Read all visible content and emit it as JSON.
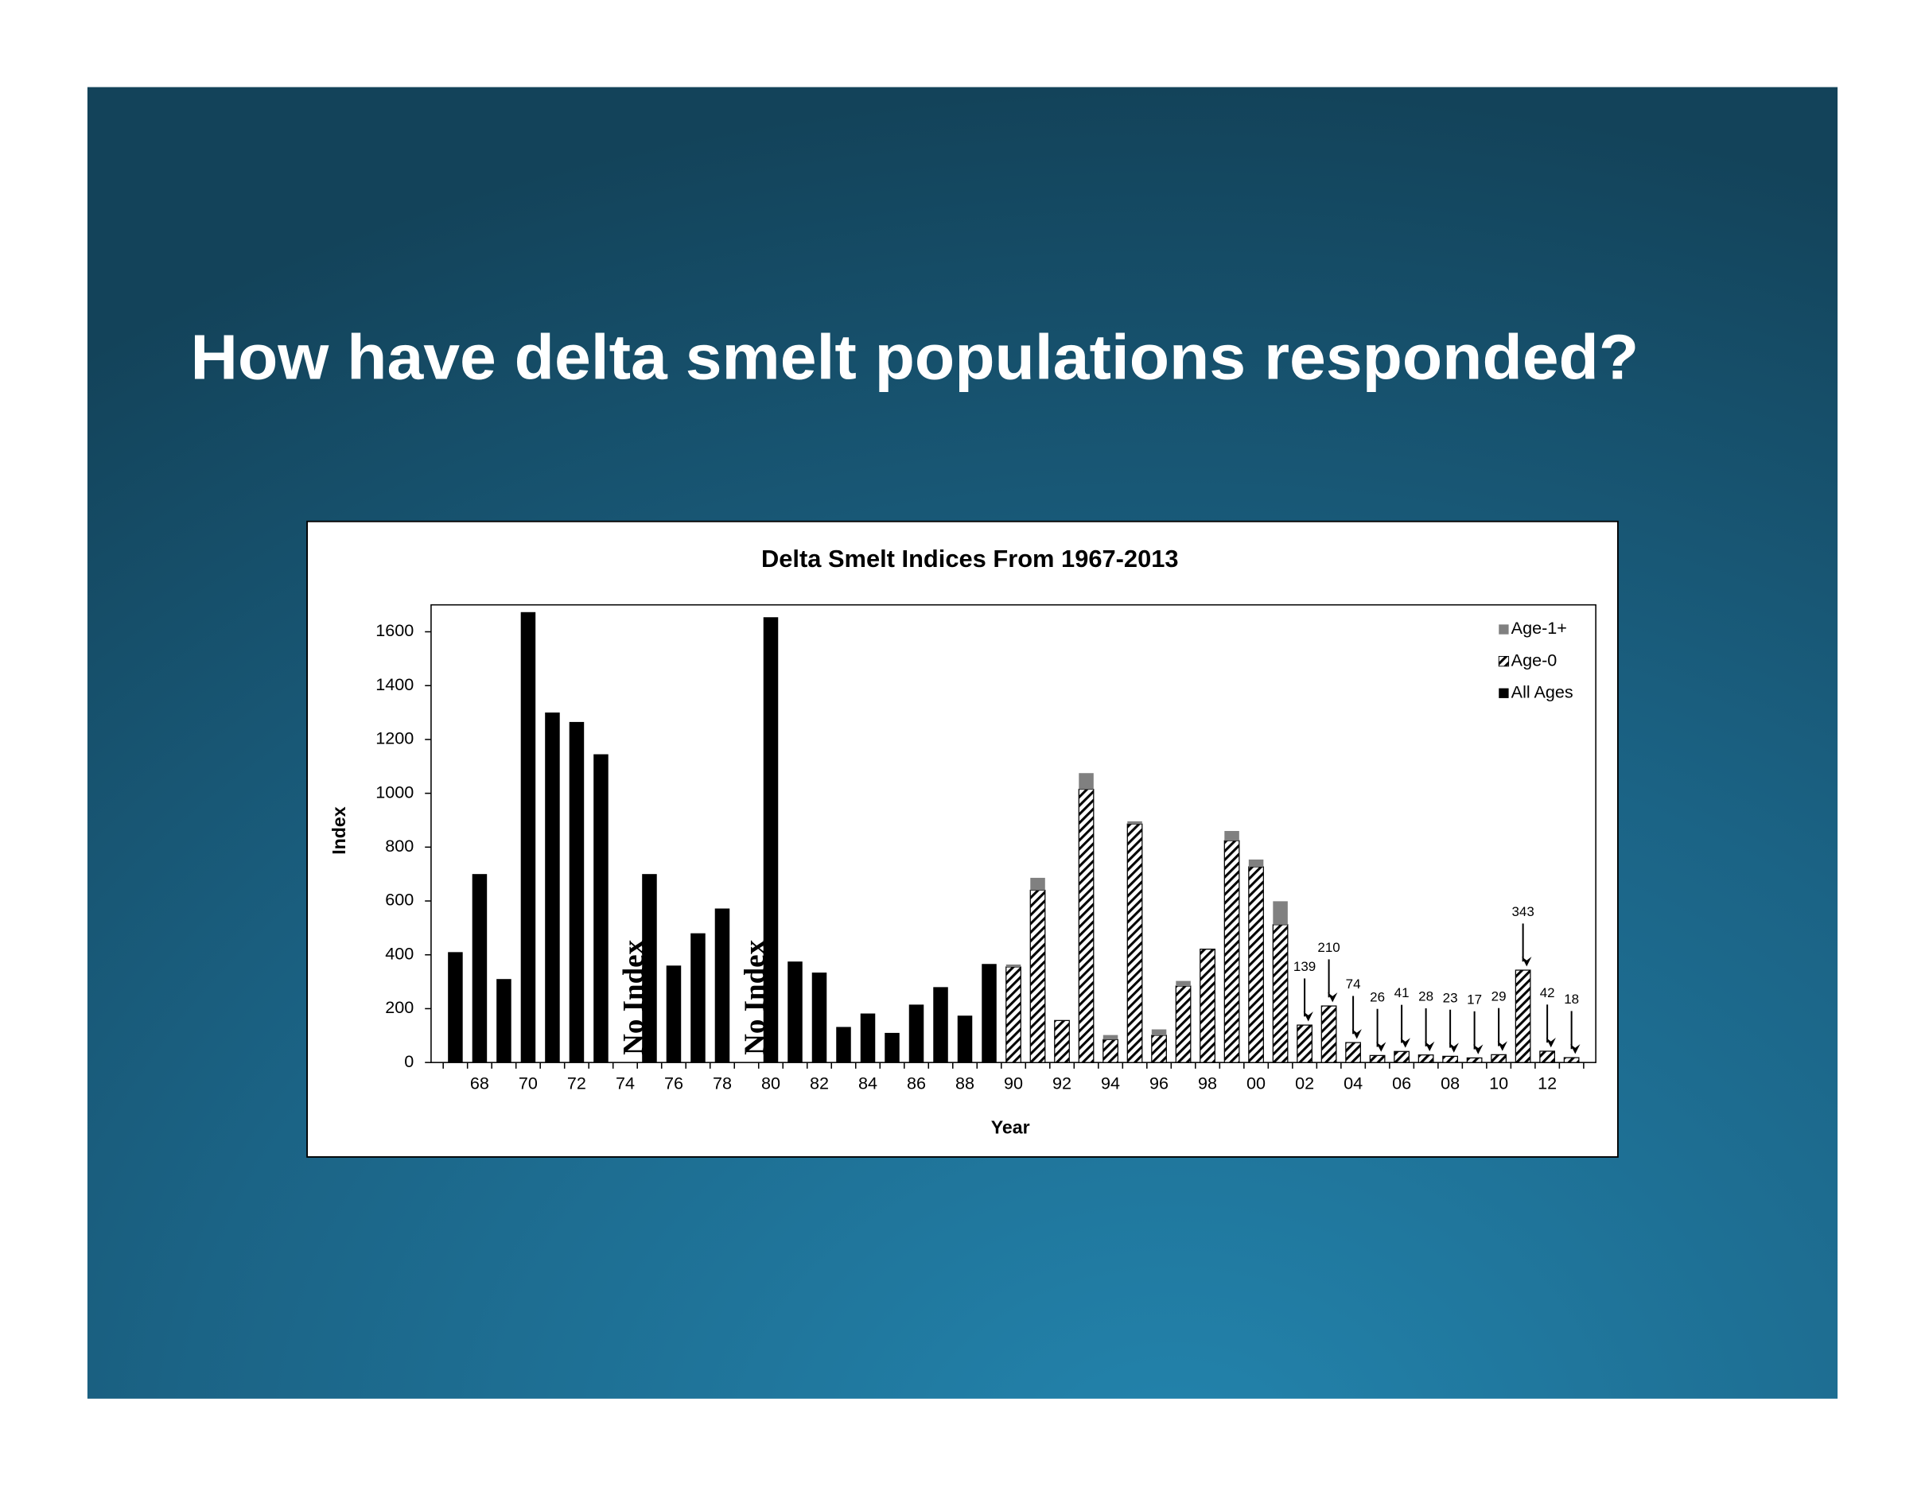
{
  "slide": {
    "title": "How have delta smelt populations responded?"
  },
  "chart_data": {
    "type": "bar",
    "stacked": true,
    "title": "Delta Smelt Indices  From 1967-2013",
    "x_label": "Year",
    "y_label": "Index",
    "no_data_label": "No Index",
    "categories": [
      null,
      "68",
      null,
      "70",
      null,
      "72",
      null,
      "74",
      null,
      "76",
      null,
      "78",
      null,
      "80",
      null,
      "82",
      null,
      "84",
      null,
      "86",
      null,
      "88",
      null,
      "90",
      null,
      "92",
      null,
      "94",
      null,
      "96",
      null,
      "98",
      null,
      "00",
      null,
      "02",
      null,
      "04",
      null,
      "06",
      null,
      "08",
      null,
      "10",
      null,
      "12",
      null
    ],
    "series": [
      {
        "name": "Age-1+",
        "color": "#808080",
        "values": [
          null,
          null,
          null,
          null,
          null,
          null,
          null,
          null,
          null,
          null,
          null,
          null,
          null,
          null,
          null,
          null,
          null,
          null,
          null,
          null,
          null,
          null,
          null,
          9,
          46,
          0,
          60,
          17,
          10,
          22,
          19,
          0,
          36,
          27,
          87,
          null,
          null,
          null,
          null,
          null,
          null,
          null,
          null,
          null,
          null,
          null,
          null
        ]
      },
      {
        "name": "Age-0",
        "color": "#000000",
        "pattern": "hatch",
        "values": [
          null,
          null,
          null,
          null,
          null,
          null,
          null,
          null,
          null,
          null,
          null,
          null,
          null,
          null,
          null,
          null,
          null,
          null,
          null,
          null,
          null,
          null,
          null,
          355,
          640,
          156,
          1015,
          85,
          886,
          101,
          284,
          421,
          824,
          727,
          512,
          139,
          210,
          74,
          26,
          41,
          28,
          23,
          17,
          29,
          343,
          42,
          18
        ]
      },
      {
        "name": "All Ages",
        "color": "#000000",
        "values": [
          410,
          700,
          310,
          1673,
          1300,
          1265,
          1145,
          null,
          700,
          360,
          480,
          572,
          null,
          1654,
          375,
          334,
          132,
          182,
          110,
          215,
          280,
          174,
          366,
          null,
          null,
          null,
          null,
          null,
          null,
          null,
          null,
          null,
          null,
          null,
          null,
          null,
          null,
          null,
          null,
          null,
          null,
          null,
          null,
          null,
          null,
          null,
          null
        ]
      }
    ],
    "ylim": [
      0,
      1700
    ],
    "yticks": [
      0,
      200,
      400,
      600,
      800,
      1000,
      1200,
      1400,
      1600
    ],
    "grid": false,
    "legend": "top-right"
  }
}
